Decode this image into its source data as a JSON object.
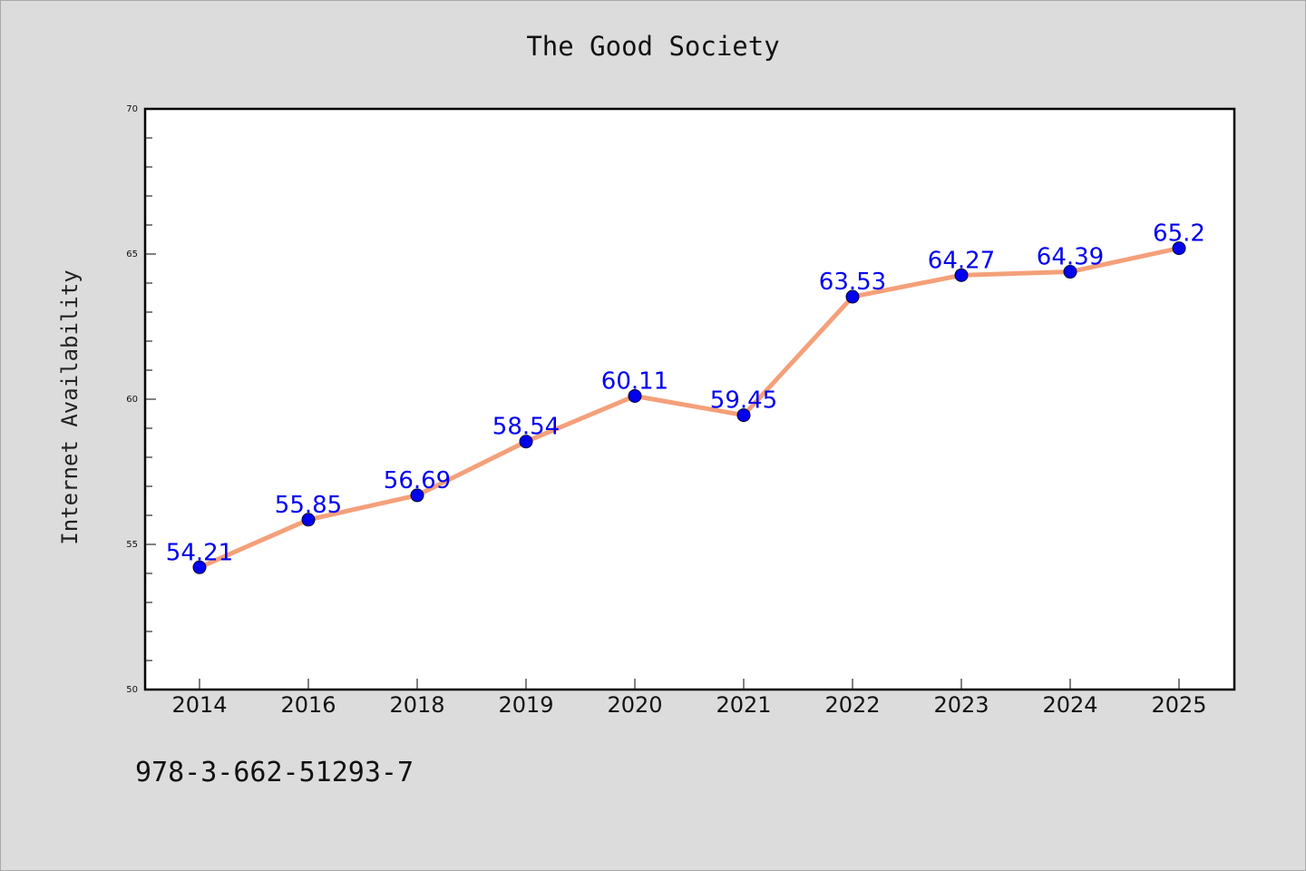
{
  "chart_data": {
    "type": "line",
    "title": "The Good Society",
    "ylabel": "Internet Availability",
    "xlabel": "",
    "categories": [
      "2014",
      "2016",
      "2018",
      "2019",
      "2020",
      "2021",
      "2022",
      "2023",
      "2024",
      "2025"
    ],
    "series": [
      {
        "values": [
          54.21,
          55.85,
          56.69,
          58.54,
          60.11,
          59.45,
          63.53,
          64.27,
          64.39,
          65.2
        ],
        "labels": [
          "54.21",
          "55.85",
          "56.69",
          "58.54",
          "60.11",
          "59.45",
          "63.53",
          "64.27",
          "64.39",
          "65.2"
        ],
        "line_color": "#f4a07a",
        "marker_color": "#0000ee"
      }
    ],
    "ylim": [
      50,
      70
    ],
    "yticks": [
      "50",
      "55",
      "60",
      "65",
      "70"
    ],
    "grid": false,
    "legend": "none"
  },
  "footer": {
    "text": "978-3-662-51293-7"
  },
  "colors": {
    "background": "#dcdcdc",
    "plot_background": "#ffffff"
  }
}
